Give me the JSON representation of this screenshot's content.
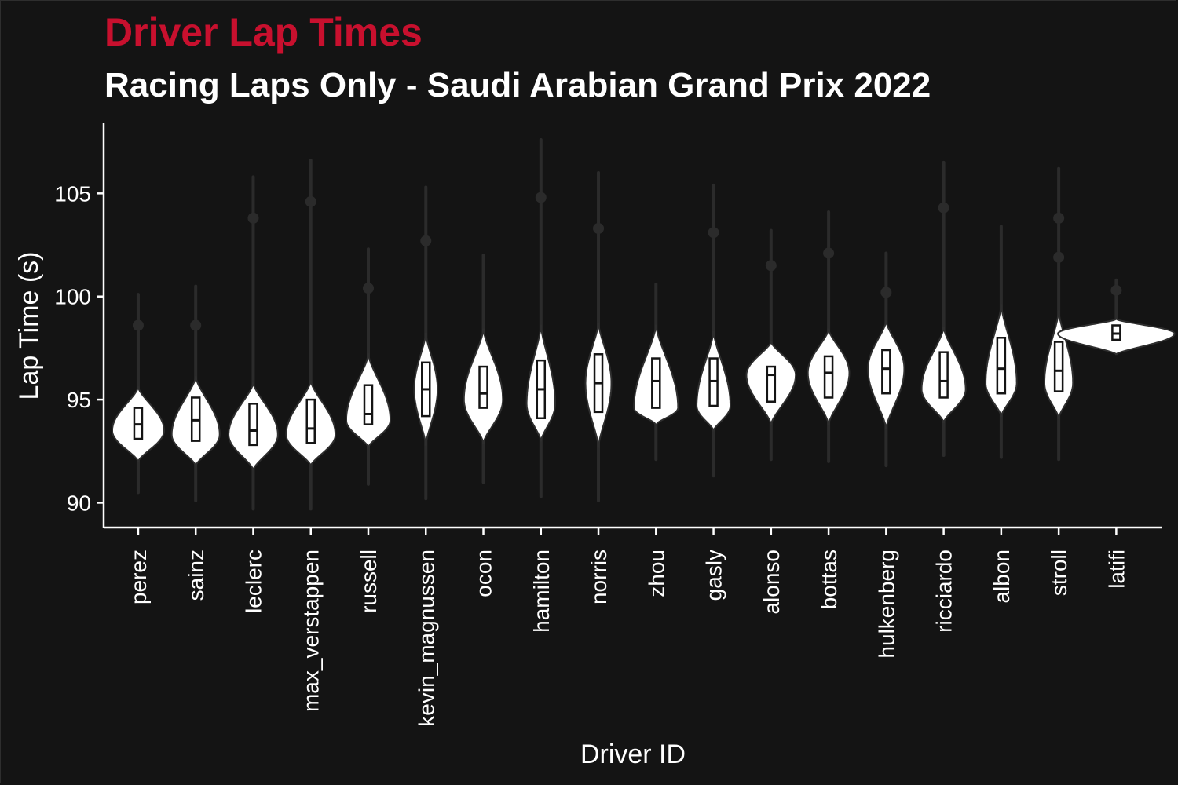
{
  "chart_data": {
    "type": "violin",
    "title": "Driver Lap Times",
    "subtitle": "Racing Laps Only - Saudi Arabian Grand Prix 2022",
    "xlabel": "Driver ID",
    "ylabel": "Lap Time (s)",
    "ylim": [
      88.8,
      108.4
    ],
    "yticks": [
      90,
      95,
      100,
      105
    ],
    "grid": false,
    "colors": {
      "background": "#141414",
      "title": "#c8102e",
      "violin": "#ffffff",
      "outlier": "#2b2b2b",
      "text": "#ffffff"
    },
    "drivers": [
      {
        "name": "perez",
        "min": 90.5,
        "q1": 93.1,
        "median": 93.8,
        "q3": 94.6,
        "max": 100.1,
        "vlow": 92.0,
        "vhigh": 95.6,
        "mode": 93.5,
        "width": 0.4,
        "outliers": [
          98.6
        ]
      },
      {
        "name": "sainz",
        "min": 90.1,
        "q1": 93.0,
        "median": 94.0,
        "q3": 95.1,
        "max": 100.5,
        "vlow": 91.8,
        "vhigh": 96.1,
        "mode": 93.3,
        "width": 0.37,
        "outliers": [
          98.6
        ]
      },
      {
        "name": "leclerc",
        "min": 89.7,
        "q1": 92.8,
        "median": 93.5,
        "q3": 94.8,
        "max": 105.8,
        "vlow": 91.6,
        "vhigh": 95.8,
        "mode": 93.3,
        "width": 0.38,
        "outliers": [
          103.8
        ]
      },
      {
        "name": "max_verstappen",
        "min": 89.7,
        "q1": 92.9,
        "median": 93.6,
        "q3": 95.0,
        "max": 106.6,
        "vlow": 91.8,
        "vhigh": 95.9,
        "mode": 93.3,
        "width": 0.38,
        "outliers": [
          104.6
        ]
      },
      {
        "name": "russell",
        "min": 90.9,
        "q1": 93.8,
        "median": 94.3,
        "q3": 95.7,
        "max": 102.3,
        "vlow": 92.7,
        "vhigh": 97.2,
        "mode": 94.0,
        "width": 0.34,
        "outliers": [
          100.4
        ]
      },
      {
        "name": "kevin_magnussen",
        "min": 90.2,
        "q1": 94.2,
        "median": 95.5,
        "q3": 96.8,
        "max": 105.3,
        "vlow": 92.8,
        "vhigh": 98.2,
        "mode": 95.5,
        "width": 0.18,
        "outliers": [
          102.7
        ]
      },
      {
        "name": "ocon",
        "min": 91.0,
        "q1": 94.6,
        "median": 95.3,
        "q3": 96.6,
        "max": 102.0,
        "vlow": 92.9,
        "vhigh": 98.4,
        "mode": 95.0,
        "width": 0.3,
        "outliers": []
      },
      {
        "name": "hamilton",
        "min": 90.3,
        "q1": 94.1,
        "median": 95.5,
        "q3": 96.9,
        "max": 107.6,
        "vlow": 93.0,
        "vhigh": 98.6,
        "mode": 94.8,
        "width": 0.22,
        "outliers": [
          104.8
        ]
      },
      {
        "name": "norris",
        "min": 90.1,
        "q1": 94.4,
        "median": 95.8,
        "q3": 97.2,
        "max": 106.0,
        "vlow": 92.7,
        "vhigh": 98.7,
        "mode": 95.8,
        "width": 0.2,
        "outliers": [
          103.3
        ]
      },
      {
        "name": "zhou",
        "min": 92.1,
        "q1": 94.6,
        "median": 95.9,
        "q3": 97.0,
        "max": 100.6,
        "vlow": 93.8,
        "vhigh": 98.6,
        "mode": 94.6,
        "width": 0.34,
        "outliers": []
      },
      {
        "name": "gasly",
        "min": 91.3,
        "q1": 94.7,
        "median": 95.9,
        "q3": 97.0,
        "max": 105.4,
        "vlow": 93.5,
        "vhigh": 98.3,
        "mode": 94.7,
        "width": 0.26,
        "outliers": [
          103.1
        ]
      },
      {
        "name": "alonso",
        "min": 92.1,
        "q1": 94.9,
        "median": 96.2,
        "q3": 96.6,
        "max": 103.2,
        "vlow": 93.8,
        "vhigh": 97.8,
        "mode": 96.2,
        "width": 0.38,
        "outliers": [
          101.5
        ]
      },
      {
        "name": "bottas",
        "min": 92.0,
        "q1": 95.1,
        "median": 96.3,
        "q3": 97.1,
        "max": 104.1,
        "vlow": 93.8,
        "vhigh": 98.4,
        "mode": 96.3,
        "width": 0.32,
        "outliers": [
          102.1
        ]
      },
      {
        "name": "hulkenberg",
        "min": 91.8,
        "q1": 95.3,
        "median": 96.5,
        "q3": 97.4,
        "max": 102.1,
        "vlow": 93.6,
        "vhigh": 98.8,
        "mode": 96.5,
        "width": 0.28,
        "outliers": [
          100.2
        ]
      },
      {
        "name": "ricciardo",
        "min": 92.3,
        "q1": 95.1,
        "median": 95.9,
        "q3": 97.3,
        "max": 106.5,
        "vlow": 93.9,
        "vhigh": 98.5,
        "mode": 95.5,
        "width": 0.34,
        "outliers": [
          104.3
        ]
      },
      {
        "name": "albon",
        "min": 92.2,
        "q1": 95.3,
        "median": 96.5,
        "q3": 98.0,
        "max": 103.4,
        "vlow": 94.2,
        "vhigh": 99.6,
        "mode": 95.8,
        "width": 0.24,
        "outliers": []
      },
      {
        "name": "stroll",
        "min": 92.1,
        "q1": 95.4,
        "median": 96.4,
        "q3": 97.8,
        "max": 106.2,
        "vlow": 94.1,
        "vhigh": 99.3,
        "mode": 95.8,
        "width": 0.22,
        "outliers": [
          103.8,
          101.9
        ]
      },
      {
        "name": "latifi",
        "min": 97.5,
        "q1": 97.9,
        "median": 98.2,
        "q3": 98.6,
        "max": 100.8,
        "vlow": 97.2,
        "vhigh": 98.9,
        "mode": 98.2,
        "width": 0.9,
        "outliers": [
          100.3
        ]
      }
    ]
  }
}
